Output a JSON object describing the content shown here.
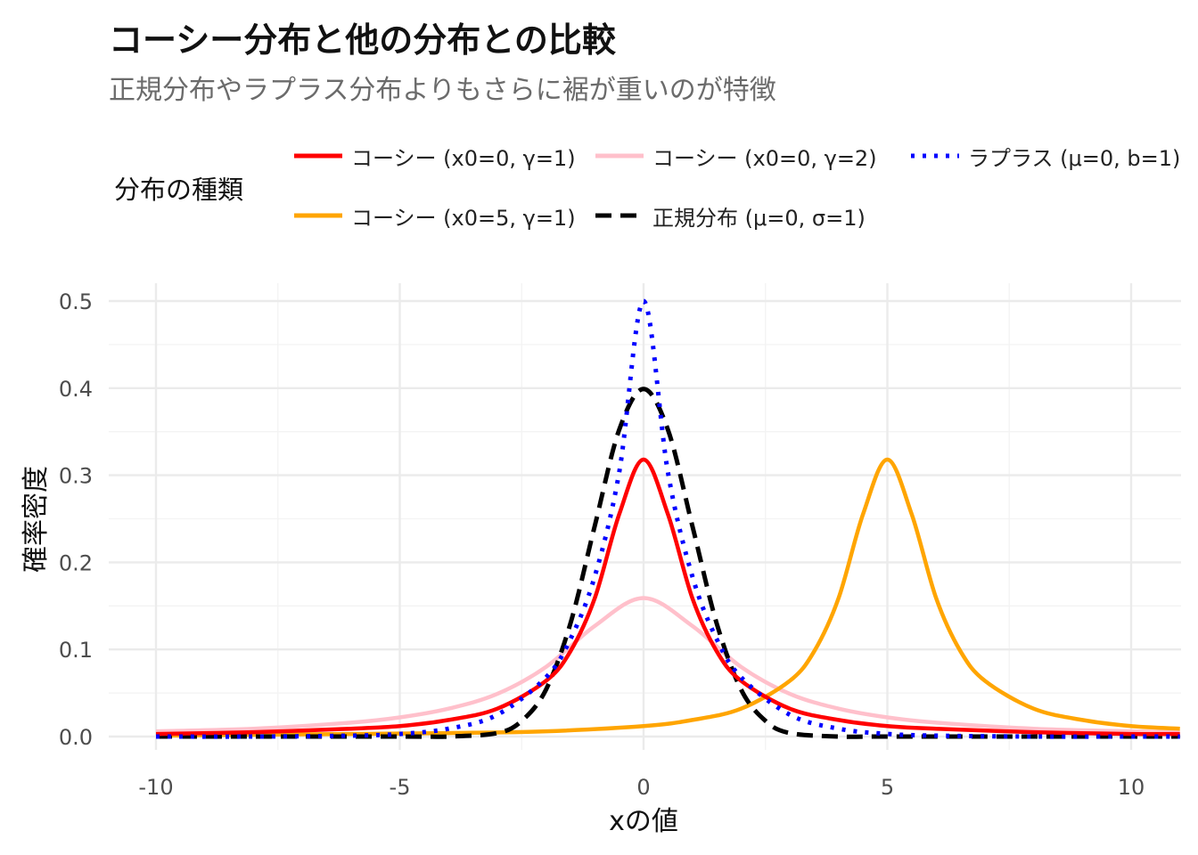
{
  "chart_data": {
    "type": "line",
    "title": "コーシー分布と他の分布との比較",
    "subtitle": "正規分布やラプラス分布よりもさらに裾が重いのが特徴",
    "xlabel": "xの値",
    "ylabel": "確率密度",
    "xlim": [
      -10,
      11
    ],
    "ylim": [
      0,
      0.5
    ],
    "x_ticks": [
      "-10",
      "-5",
      "0",
      "5",
      "10"
    ],
    "y_ticks": [
      "0.0",
      "0.1",
      "0.2",
      "0.3",
      "0.4",
      "0.5"
    ],
    "grid": true,
    "legend_title": "分布の種類",
    "legend_position": "top",
    "series": [
      {
        "name": "コーシー (x0=0, γ=1)",
        "color": "#FF0000",
        "line": "solid",
        "x": [
          -10,
          -8,
          -6,
          -5,
          -4,
          -3,
          -2,
          -1.5,
          -1,
          -0.5,
          0,
          0.5,
          1,
          1.5,
          2,
          3,
          4,
          5,
          6,
          8,
          10,
          11
        ],
        "y": [
          0.003,
          0.005,
          0.009,
          0.012,
          0.019,
          0.032,
          0.064,
          0.098,
          0.159,
          0.255,
          0.318,
          0.255,
          0.159,
          0.098,
          0.064,
          0.032,
          0.019,
          0.012,
          0.009,
          0.005,
          0.003,
          0.003
        ]
      },
      {
        "name": "コーシー (x0=0, γ=2)",
        "color": "#FFC0CB",
        "line": "solid",
        "x": [
          -10,
          -8,
          -6,
          -5,
          -4,
          -3,
          -2,
          -1,
          0,
          1,
          2,
          3,
          4,
          5,
          6,
          8,
          10,
          11
        ],
        "y": [
          0.006,
          0.009,
          0.016,
          0.022,
          0.032,
          0.049,
          0.08,
          0.127,
          0.159,
          0.127,
          0.08,
          0.049,
          0.032,
          0.022,
          0.016,
          0.009,
          0.006,
          0.005
        ]
      },
      {
        "name": "ラプラス (μ=0, b=1)",
        "color": "#0000FF",
        "line": "dotted",
        "x": [
          -10,
          -8,
          -6,
          -5,
          -4,
          -3,
          -2,
          -1.5,
          -1,
          -0.5,
          0,
          0.5,
          1,
          1.5,
          2,
          3,
          4,
          5,
          6,
          8,
          10,
          11
        ],
        "y": [
          0,
          0,
          0.001,
          0.003,
          0.009,
          0.025,
          0.068,
          0.112,
          0.184,
          0.303,
          0.5,
          0.303,
          0.184,
          0.112,
          0.068,
          0.025,
          0.009,
          0.003,
          0.001,
          0,
          0,
          0
        ]
      },
      {
        "name": "コーシー (x0=5, γ=1)",
        "color": "#FFA500",
        "line": "solid",
        "x": [
          -10,
          -8,
          -6,
          -4,
          -2,
          0,
          1,
          2,
          3,
          3.5,
          4,
          4.5,
          5,
          5.5,
          6,
          6.5,
          7,
          8,
          9,
          10,
          11
        ],
        "y": [
          0.001,
          0.002,
          0.003,
          0.004,
          0.006,
          0.012,
          0.019,
          0.032,
          0.064,
          0.098,
          0.159,
          0.255,
          0.318,
          0.255,
          0.159,
          0.098,
          0.064,
          0.032,
          0.019,
          0.012,
          0.009
        ]
      },
      {
        "name": "正規分布 (μ=0, σ=1)",
        "color": "#000000",
        "line": "dashed",
        "x": [
          -10,
          -5,
          -4,
          -3,
          -2.5,
          -2,
          -1.5,
          -1,
          -0.5,
          0,
          0.5,
          1,
          1.5,
          2,
          2.5,
          3,
          4,
          5,
          10,
          11
        ],
        "y": [
          0,
          0,
          0,
          0.004,
          0.018,
          0.054,
          0.13,
          0.242,
          0.352,
          0.399,
          0.352,
          0.242,
          0.13,
          0.054,
          0.018,
          0.004,
          0,
          0,
          0,
          0
        ]
      }
    ]
  }
}
